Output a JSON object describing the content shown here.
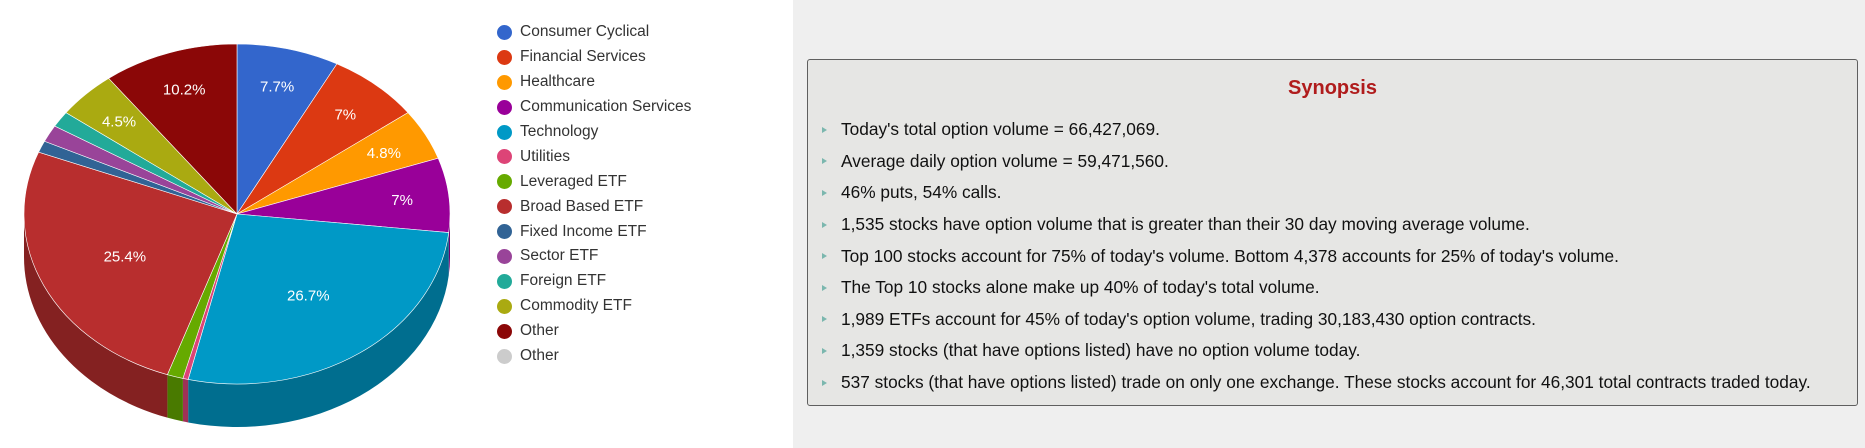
{
  "chart_data": {
    "type": "pie",
    "style": "3d",
    "slices": [
      {
        "label": "Consumer Cyclical",
        "value": 7.7,
        "color": "#3366cc",
        "data_label": "7.7%"
      },
      {
        "label": "Financial Services",
        "value": 7.0,
        "color": "#dc3912",
        "data_label": "7%"
      },
      {
        "label": "Healthcare",
        "value": 4.8,
        "color": "#ff9900",
        "data_label": "4.8%"
      },
      {
        "label": "Communication Services",
        "value": 7.0,
        "color": "#990099",
        "data_label": "7%"
      },
      {
        "label": "Technology",
        "value": 26.7,
        "color": "#0099c6",
        "data_label": "26.7%"
      },
      {
        "label": "Utilities",
        "value": 0.4,
        "color": "#dd4477",
        "data_label": ""
      },
      {
        "label": "Leveraged ETF",
        "value": 1.2,
        "color": "#66aa00",
        "data_label": ""
      },
      {
        "label": "Broad Based ETF",
        "value": 25.4,
        "color": "#b82e2e",
        "data_label": "25.4%"
      },
      {
        "label": "Fixed Income ETF",
        "value": 1.1,
        "color": "#316395",
        "data_label": ""
      },
      {
        "label": "Sector ETF",
        "value": 1.6,
        "color": "#994499",
        "data_label": ""
      },
      {
        "label": "Foreign ETF",
        "value": 1.5,
        "color": "#22aa99",
        "data_label": ""
      },
      {
        "label": "Commodity ETF",
        "value": 4.5,
        "color": "#aaaa11",
        "data_label": "4.5%"
      },
      {
        "label": "Other",
        "value": 10.2,
        "color": "#8b0707",
        "data_label": "10.2%"
      },
      {
        "label": "Other",
        "value": 0.0,
        "color": "#cccccc",
        "data_label": ""
      }
    ],
    "legend_position": "right"
  },
  "synopsis": {
    "title": "Synopsis",
    "items": [
      "Today's total option volume = 66,427,069.",
      "Average daily option volume = 59,471,560.",
      "46% puts, 54% calls.",
      "1,535 stocks have option volume that is greater than their 30 day moving average volume.",
      "Top 100 stocks account for 75% of today's volume. Bottom 4,378 accounts for 25% of today's volume.",
      "The Top 10 stocks alone make up 40% of today's total volume.",
      "1,989 ETFs account for 45% of today's option volume, trading 30,183,430 option contracts.",
      "1,359 stocks (that have options listed) have no option volume today.",
      "537 stocks (that have options listed) trade on only one exchange. These stocks account for 46,301 total contracts traded today."
    ]
  }
}
